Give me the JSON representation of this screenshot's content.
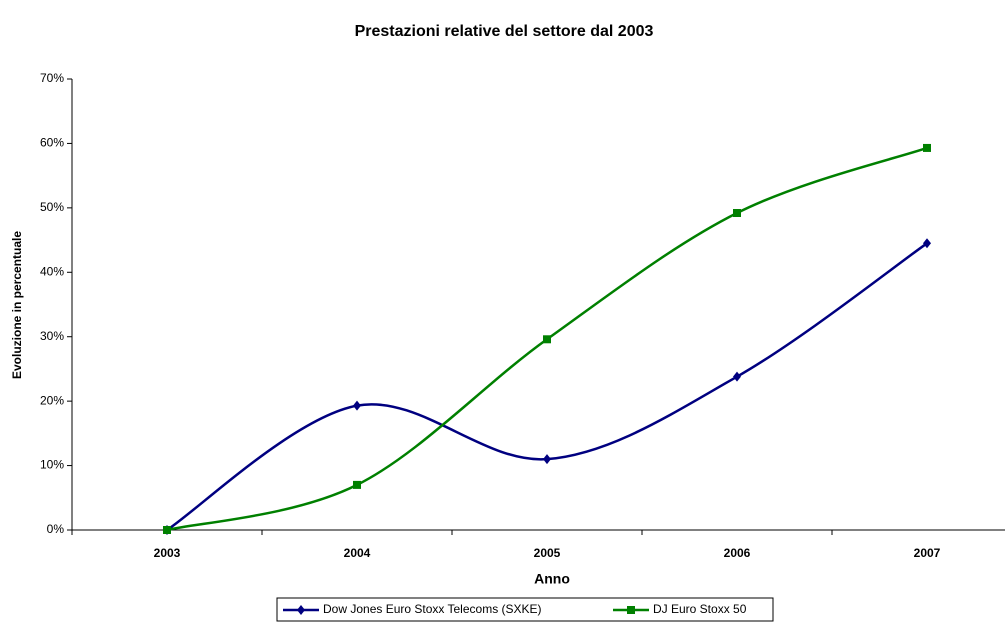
{
  "chart_data": {
    "type": "line",
    "title": "Prestazioni relative del settore dal 2003",
    "x_label": "Anno",
    "y_label": "Evoluzione in percentuale",
    "categories": [
      "2003",
      "2004",
      "2005",
      "2006",
      "2007"
    ],
    "series": [
      {
        "name": "Dow Jones Euro Stoxx Telecoms (SXKE)",
        "color": "#000080",
        "marker": "diamond",
        "values": [
          0,
          19.3,
          11,
          23.8,
          44.5
        ]
      },
      {
        "name": "DJ Euro Stoxx 50",
        "color": "#008000",
        "marker": "square",
        "values": [
          0,
          7,
          29.6,
          49.2,
          59.3
        ]
      }
    ],
    "ylim": [
      0,
      70
    ],
    "yticks": [
      {
        "value": 0,
        "label": "0%"
      },
      {
        "value": 10,
        "label": "10%"
      },
      {
        "value": 20,
        "label": "20%"
      },
      {
        "value": 30,
        "label": "30%"
      },
      {
        "value": 40,
        "label": "40%"
      },
      {
        "value": 50,
        "label": "50%"
      },
      {
        "value": 60,
        "label": "60%"
      },
      {
        "value": 70,
        "label": "70%"
      }
    ],
    "smooth": true,
    "legend": "bottom"
  }
}
